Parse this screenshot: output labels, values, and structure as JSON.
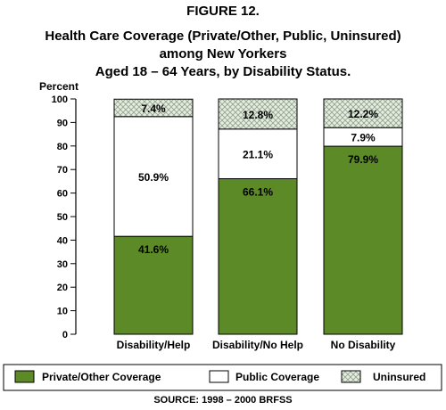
{
  "figure_label": "FIGURE 12.",
  "title_lines": [
    "Health Care Coverage (Private/Other, Public, Uninsured)",
    "among New Yorkers",
    "Aged 18 – 64 Years, by Disability Status."
  ],
  "source": "SOURCE: 1998 – 2000 BRFSS",
  "colors": {
    "private": "#5b8a26",
    "public": "#ffffff",
    "uninsured": "#e6ece0",
    "uninsured_hatch": "#8fa38c"
  },
  "chart_data": {
    "type": "bar",
    "stacked": true,
    "ylabel": "Percent",
    "ylim": [
      0,
      100
    ],
    "yticks": [
      0,
      10,
      20,
      30,
      40,
      50,
      60,
      70,
      80,
      90,
      100
    ],
    "grid": false,
    "legend_position": "bottom",
    "categories": [
      "Disability/Help",
      "Disability/No Help",
      "No Disability"
    ],
    "series": [
      {
        "name": "Private/Other Coverage",
        "values": [
          41.6,
          66.1,
          79.9
        ],
        "labels": [
          "41.6%",
          "66.1%",
          "79.9%"
        ]
      },
      {
        "name": "Public Coverage",
        "values": [
          50.9,
          21.1,
          7.9
        ],
        "labels": [
          "50.9%",
          "21.1%",
          "7.9%"
        ]
      },
      {
        "name": "Uninsured",
        "values": [
          7.4,
          12.8,
          12.2
        ],
        "labels": [
          "7.4%",
          "12.8%",
          "12.2%"
        ]
      }
    ]
  }
}
